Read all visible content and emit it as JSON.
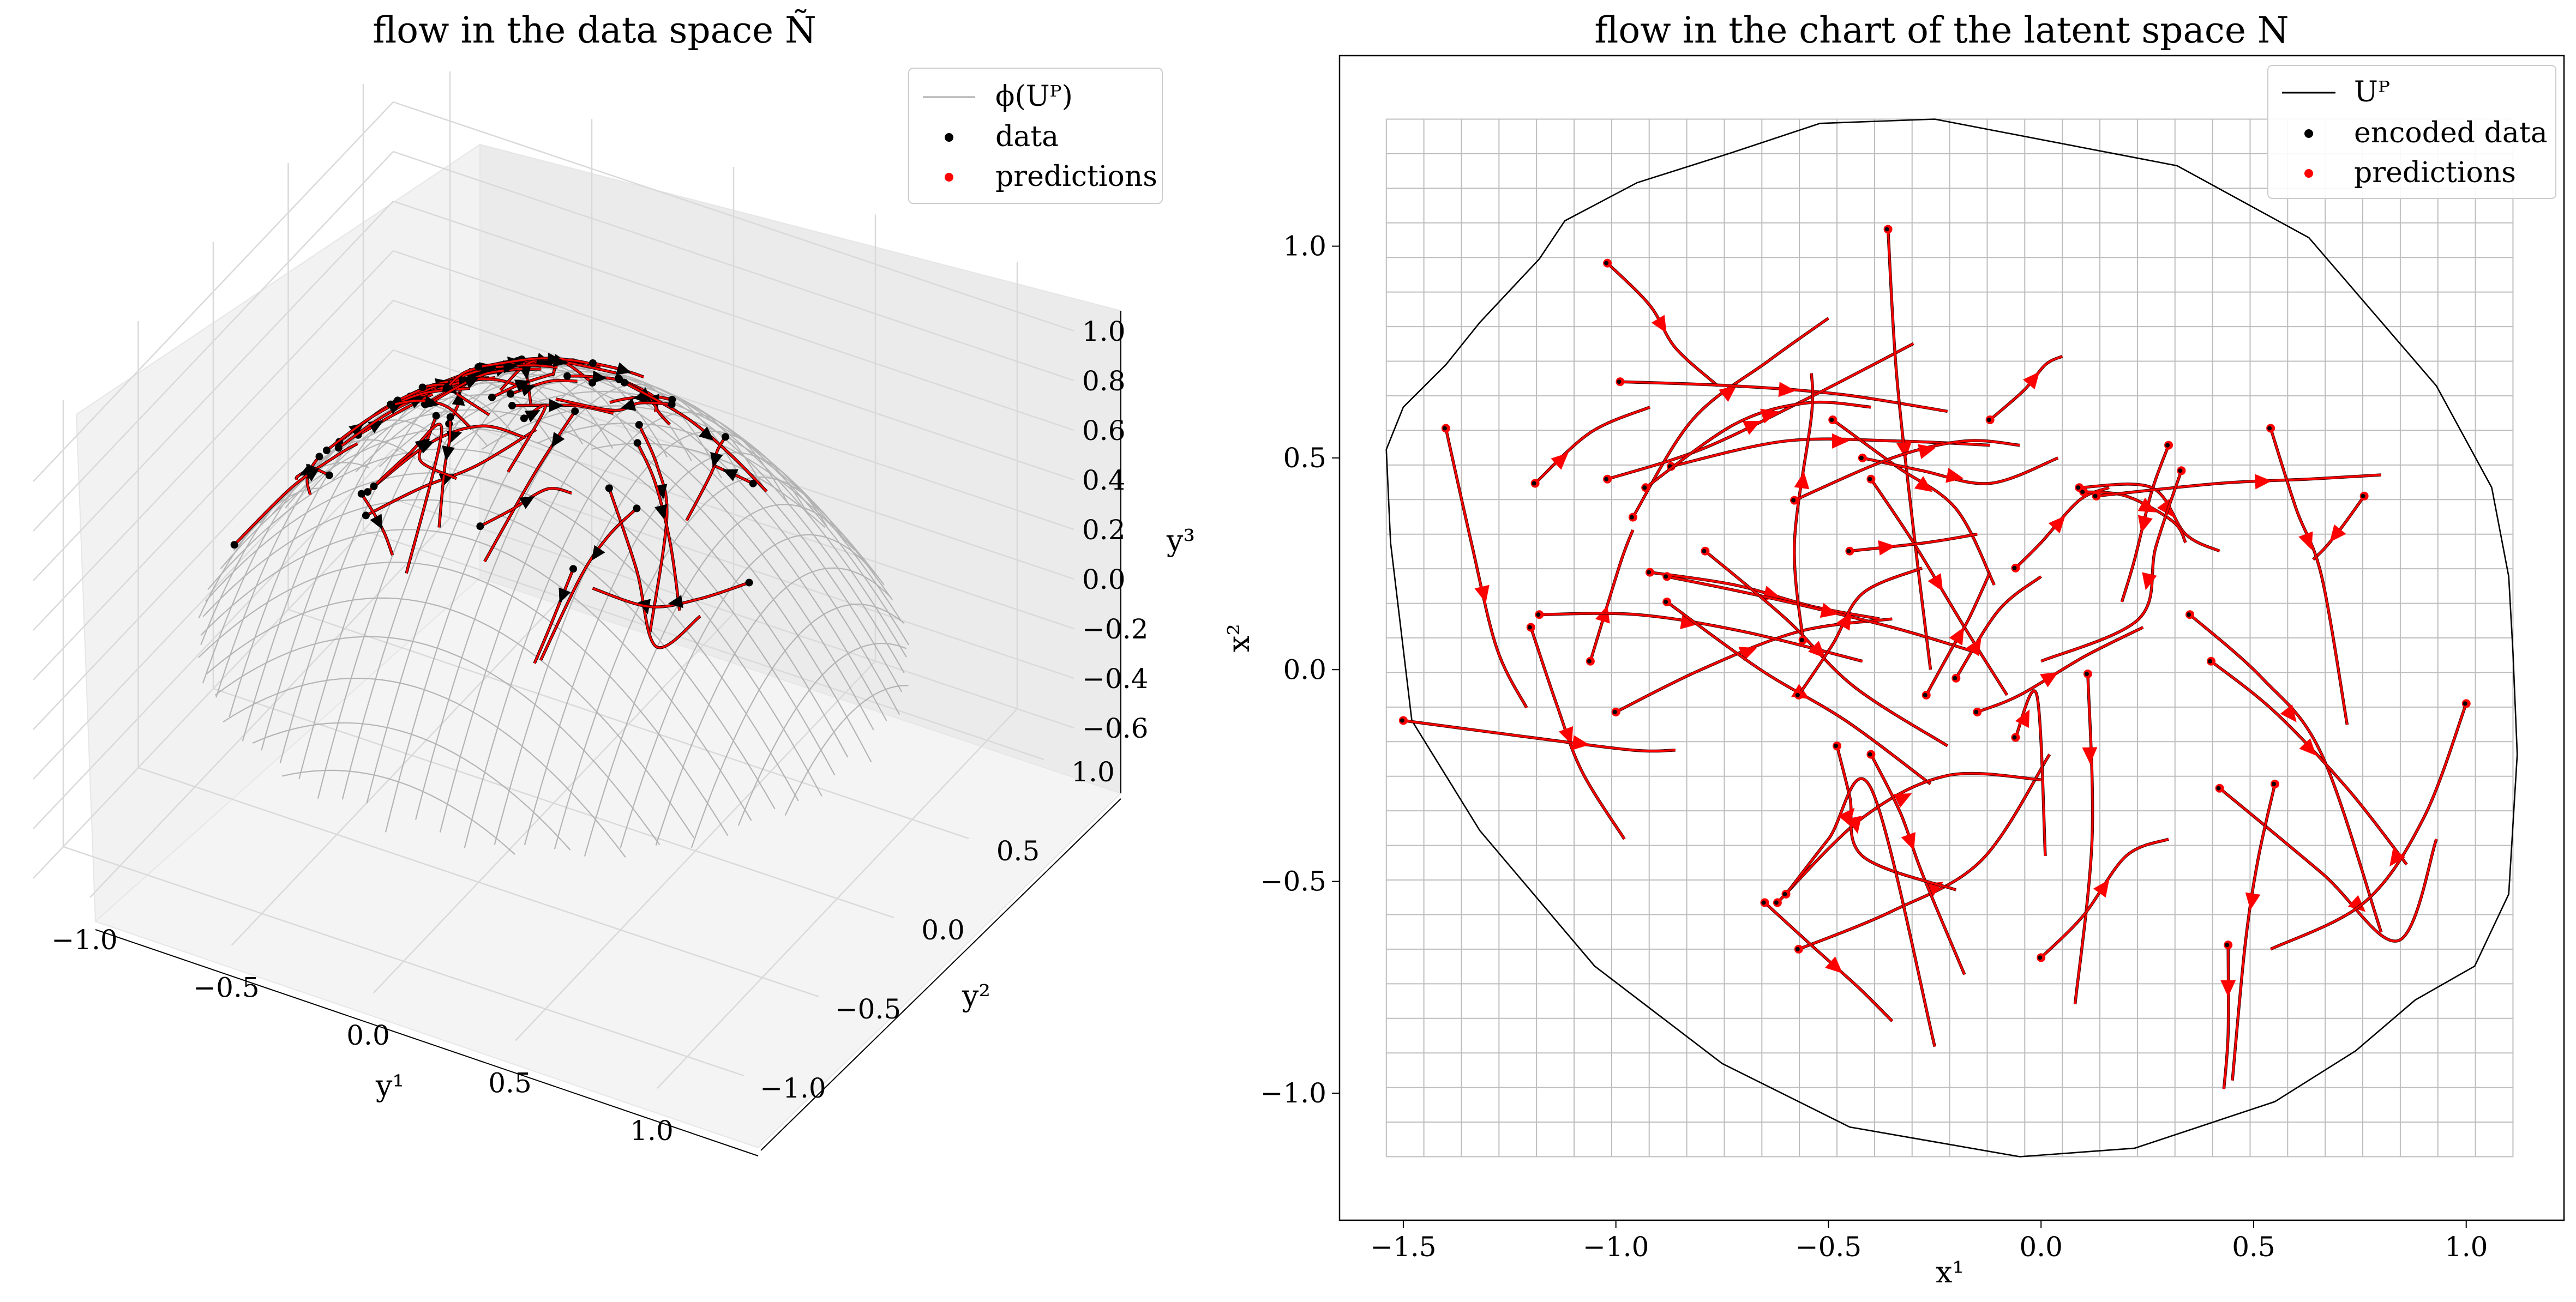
{
  "chart_data": [
    {
      "type": "3d-surface-with-trajectories",
      "title": "flow in the data space Ñ",
      "xlabel": "y¹",
      "ylabel": "y²",
      "zlabel": "y³",
      "xlim": [
        -1.2,
        1.2
      ],
      "ylim": [
        -1.2,
        1.2
      ],
      "zlim": [
        -0.6,
        1.2
      ],
      "xticks": [
        "−1.0",
        "−0.5",
        "0.0",
        "0.5",
        "1.0"
      ],
      "yticks": [
        "−1.0",
        "−0.5",
        "0.0",
        "0.5",
        "1.0"
      ],
      "zticks": [
        "−0.6",
        "−0.4",
        "−0.2",
        "0.0",
        "0.2",
        "0.4",
        "0.6",
        "0.8",
        "1.0"
      ],
      "legend": {
        "placement": "top-right",
        "entries": [
          {
            "label": "ϕ(Uᴾ)",
            "marker": "line",
            "color": "#b0b0b0"
          },
          {
            "label": "data",
            "marker": "dot",
            "color": "#000000"
          },
          {
            "label": "predictions",
            "marker": "dot",
            "color": "#ff0000"
          }
        ]
      },
      "grid": true
    },
    {
      "type": "line",
      "title": "flow in the chart of the latent space N",
      "xlabel": "x¹",
      "ylabel": "x²",
      "xlim": [
        -1.65,
        1.23
      ],
      "ylim": [
        -1.3,
        1.45
      ],
      "xticks": [
        "−1.5",
        "−1.0",
        "−0.5",
        "0.0",
        "0.5",
        "1.0"
      ],
      "yticks": [
        "−1.0",
        "−0.5",
        "0.0",
        "0.5",
        "1.0"
      ],
      "grid": true,
      "legend": {
        "placement": "top-right",
        "entries": [
          {
            "label": "Uᴾ",
            "marker": "line",
            "color": "#000000"
          },
          {
            "label": "encoded data",
            "marker": "dot",
            "color": "#000000"
          },
          {
            "label": "predictions",
            "marker": "dot",
            "color": "#ff0000"
          }
        ]
      },
      "series": [
        {
          "name": "Uᴾ",
          "color": "#000000",
          "x": [
            -1.53,
            -1.54,
            -1.5,
            -1.4,
            -1.32,
            -1.18,
            -1.12,
            -0.95,
            -0.73,
            -0.52,
            -0.25,
            0.32,
            0.63,
            0.81,
            0.93,
            1.06,
            1.1,
            1.11,
            1.12,
            1.1,
            1.02,
            0.88,
            0.74,
            0.55,
            0.22,
            -0.05,
            -0.45,
            -0.75,
            -1.05,
            -1.32,
            -1.48,
            -1.53
          ],
          "y": [
            0.3,
            0.52,
            0.62,
            0.72,
            0.82,
            0.97,
            1.06,
            1.15,
            1.22,
            1.29,
            1.3,
            1.19,
            1.02,
            0.81,
            0.67,
            0.43,
            0.22,
            0.04,
            -0.2,
            -0.53,
            -0.7,
            -0.78,
            -0.9,
            -1.02,
            -1.13,
            -1.15,
            -1.08,
            -0.93,
            -0.7,
            -0.38,
            -0.12,
            0.3
          ]
        }
      ],
      "trajectories": [
        {
          "x": [
            -1.4,
            -1.34,
            -1.28,
            -1.21
          ],
          "y": [
            0.57,
            0.3,
            0.05,
            -0.09
          ]
        },
        {
          "x": [
            -1.2,
            -1.14,
            -1.08,
            -0.98
          ],
          "y": [
            0.1,
            -0.08,
            -0.24,
            -0.4
          ]
        },
        {
          "x": [
            -1.19,
            -1.06,
            -0.92
          ],
          "y": [
            0.44,
            0.56,
            0.62
          ]
        },
        {
          "x": [
            -1.5,
            -1.2,
            -0.96,
            -0.86
          ],
          "y": [
            -0.12,
            -0.16,
            -0.19,
            -0.19
          ]
        },
        {
          "x": [
            -0.96,
            -0.82,
            -0.64,
            -0.5
          ],
          "y": [
            0.36,
            0.59,
            0.73,
            0.83
          ]
        },
        {
          "x": [
            -1.02,
            -0.92,
            -0.86,
            -0.76
          ],
          "y": [
            0.96,
            0.86,
            0.76,
            0.67
          ]
        },
        {
          "x": [
            -0.99,
            -0.72,
            -0.47,
            -0.22
          ],
          "y": [
            0.68,
            0.67,
            0.65,
            0.61
          ]
        },
        {
          "x": [
            -1.02,
            -0.8,
            -0.55,
            -0.3
          ],
          "y": [
            0.45,
            0.52,
            0.64,
            0.77
          ]
        },
        {
          "x": [
            -0.87,
            -0.6,
            -0.34,
            -0.12
          ],
          "y": [
            0.48,
            0.54,
            0.54,
            0.53
          ]
        },
        {
          "x": [
            -0.93,
            -0.72,
            -0.55,
            -0.4
          ],
          "y": [
            0.43,
            0.58,
            0.63,
            0.62
          ]
        },
        {
          "x": [
            -1.06,
            -0.99,
            -0.96
          ],
          "y": [
            0.02,
            0.25,
            0.33
          ]
        },
        {
          "x": [
            -0.92,
            -0.72,
            -0.54,
            -0.38
          ],
          "y": [
            0.23,
            0.2,
            0.15,
            0.12
          ]
        },
        {
          "x": [
            -1.0,
            -0.8,
            -0.57,
            -0.35
          ],
          "y": [
            -0.1,
            0.0,
            0.09,
            0.12
          ]
        },
        {
          "x": [
            -1.18,
            -0.95,
            -0.7,
            -0.42
          ],
          "y": [
            0.13,
            0.13,
            0.09,
            0.02
          ]
        },
        {
          "x": [
            -0.88,
            -0.64,
            -0.35,
            -0.15
          ],
          "y": [
            0.22,
            0.17,
            0.1,
            0.04
          ]
        },
        {
          "x": [
            -0.88,
            -0.66,
            -0.46,
            -0.26
          ],
          "y": [
            0.16,
            0.0,
            -0.12,
            -0.27
          ]
        },
        {
          "x": [
            -0.79,
            -0.6,
            -0.44,
            -0.22
          ],
          "y": [
            0.28,
            0.12,
            -0.04,
            -0.18
          ]
        },
        {
          "x": [
            -0.56,
            -0.58,
            -0.54,
            -0.54
          ],
          "y": [
            0.07,
            0.3,
            0.6,
            0.7
          ]
        },
        {
          "x": [
            -0.36,
            -0.34,
            -0.3,
            -0.26
          ],
          "y": [
            1.04,
            0.7,
            0.33,
            0.0
          ]
        },
        {
          "x": [
            -0.49,
            -0.34,
            -0.2,
            -0.11
          ],
          "y": [
            0.59,
            0.48,
            0.38,
            0.2
          ]
        },
        {
          "x": [
            -0.4,
            -0.3,
            -0.18,
            -0.08
          ],
          "y": [
            0.45,
            0.3,
            0.1,
            -0.06
          ]
        },
        {
          "x": [
            -0.57,
            -0.49,
            -0.42,
            -0.28
          ],
          "y": [
            -0.06,
            0.06,
            0.18,
            0.24
          ]
        },
        {
          "x": [
            -0.45,
            -0.27,
            -0.15
          ],
          "y": [
            0.28,
            0.3,
            0.32
          ]
        },
        {
          "x": [
            -0.42,
            -0.28,
            -0.12,
            0.04
          ],
          "y": [
            0.5,
            0.47,
            0.44,
            0.5
          ]
        },
        {
          "x": [
            -0.58,
            -0.35,
            -0.18,
            -0.05
          ],
          "y": [
            0.4,
            0.5,
            0.54,
            0.53
          ]
        },
        {
          "x": [
            -0.2,
            -0.1,
            0.0
          ],
          "y": [
            -0.02,
            0.14,
            0.22
          ]
        },
        {
          "x": [
            -0.27,
            -0.21,
            -0.17,
            -0.12
          ],
          "y": [
            -0.06,
            0.05,
            0.12,
            0.23
          ]
        },
        {
          "x": [
            -0.12,
            -0.04,
            0.01,
            0.05
          ],
          "y": [
            0.59,
            0.66,
            0.72,
            0.74
          ]
        },
        {
          "x": [
            -0.15,
            -0.05,
            0.1,
            0.24
          ],
          "y": [
            -0.1,
            -0.06,
            0.03,
            0.1
          ]
        },
        {
          "x": [
            -0.06,
            0.0,
            0.09,
            0.16
          ],
          "y": [
            0.24,
            0.3,
            0.4,
            0.43
          ]
        },
        {
          "x": [
            0.3,
            0.26,
            0.22,
            0.19
          ],
          "y": [
            0.53,
            0.42,
            0.26,
            0.16
          ]
        },
        {
          "x": [
            0.09,
            0.26,
            0.34,
            0.42
          ],
          "y": [
            0.43,
            0.43,
            0.32,
            0.28
          ]
        },
        {
          "x": [
            0.1,
            0.2,
            0.31,
            0.34
          ],
          "y": [
            0.42,
            0.41,
            0.35,
            0.3
          ]
        },
        {
          "x": [
            0.13,
            0.42,
            0.63,
            0.8
          ],
          "y": [
            0.41,
            0.44,
            0.45,
            0.46
          ]
        },
        {
          "x": [
            0.76,
            0.71,
            0.67,
            0.64
          ],
          "y": [
            0.41,
            0.34,
            0.29,
            0.26
          ]
        },
        {
          "x": [
            0.33,
            0.27,
            0.23,
            0.0
          ],
          "y": [
            0.47,
            0.29,
            0.12,
            0.02
          ]
        },
        {
          "x": [
            0.54,
            0.6,
            0.66,
            0.72
          ],
          "y": [
            0.57,
            0.38,
            0.22,
            -0.13
          ]
        },
        {
          "x": [
            0.35,
            0.52,
            0.66,
            0.8
          ],
          "y": [
            0.13,
            -0.02,
            -0.2,
            -0.62
          ]
        },
        {
          "x": [
            0.4,
            0.55,
            0.72,
            0.86
          ],
          "y": [
            0.02,
            -0.1,
            -0.28,
            -0.46
          ]
        },
        {
          "x": [
            0.42,
            0.66,
            0.84,
            0.93
          ],
          "y": [
            -0.28,
            -0.48,
            -0.64,
            -0.4
          ]
        },
        {
          "x": [
            1.0,
            0.9,
            0.76,
            0.54
          ],
          "y": [
            -0.08,
            -0.35,
            -0.55,
            -0.66
          ]
        },
        {
          "x": [
            0.55,
            0.51,
            0.48,
            0.45
          ],
          "y": [
            -0.27,
            -0.45,
            -0.65,
            -0.97
          ]
        },
        {
          "x": [
            0.44,
            0.44,
            0.43
          ],
          "y": [
            -0.65,
            -0.86,
            -0.99
          ]
        },
        {
          "x": [
            0.11,
            0.12,
            0.08
          ],
          "y": [
            -0.01,
            -0.4,
            -0.79
          ]
        },
        {
          "x": [
            0.0,
            0.1,
            0.2,
            0.3
          ],
          "y": [
            -0.68,
            -0.58,
            -0.44,
            -0.4
          ]
        },
        {
          "x": [
            -0.57,
            -0.35,
            -0.14,
            0.02
          ],
          "y": [
            -0.66,
            -0.57,
            -0.45,
            -0.2
          ]
        },
        {
          "x": [
            -0.65,
            -0.53,
            -0.43,
            -0.35
          ],
          "y": [
            -0.55,
            -0.66,
            -0.75,
            -0.83
          ]
        },
        {
          "x": [
            -0.62,
            -0.42,
            -0.22,
            0.0
          ],
          "y": [
            -0.55,
            -0.35,
            -0.25,
            -0.26
          ]
        },
        {
          "x": [
            -0.4,
            -0.33,
            -0.28,
            -0.18
          ],
          "y": [
            -0.2,
            -0.34,
            -0.48,
            -0.72
          ]
        },
        {
          "x": [
            -0.48,
            -0.45,
            -0.42,
            -0.2
          ],
          "y": [
            -0.18,
            -0.3,
            -0.44,
            -0.52
          ]
        },
        {
          "x": [
            -0.6,
            -0.5,
            -0.4,
            -0.25
          ],
          "y": [
            -0.53,
            -0.4,
            -0.28,
            -0.89
          ]
        },
        {
          "x": [
            -0.06,
            -0.01,
            0.01
          ],
          "y": [
            -0.16,
            -0.06,
            -0.44
          ]
        }
      ]
    }
  ]
}
